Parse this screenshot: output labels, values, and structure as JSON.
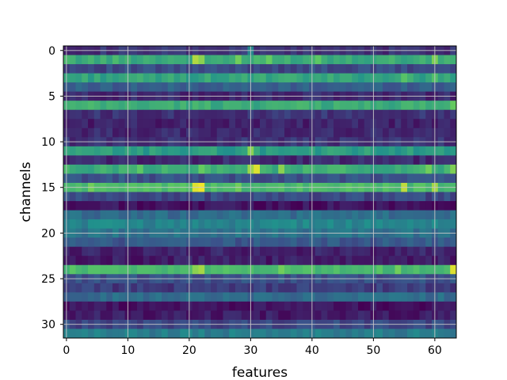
{
  "chart_data": {
    "type": "heatmap",
    "title": "",
    "xlabel": "features",
    "ylabel": "channels",
    "n_rows": 32,
    "n_cols": 64,
    "xlim": [
      -0.5,
      63.5
    ],
    "ylim": [
      31.5,
      -0.5
    ],
    "xticks": [
      0,
      10,
      20,
      30,
      40,
      50,
      60
    ],
    "xtick_labels": [
      "0",
      "10",
      "20",
      "30",
      "40",
      "50",
      "60"
    ],
    "yticks": [
      0,
      5,
      10,
      15,
      20,
      25,
      30
    ],
    "ytick_labels": [
      "0",
      "5",
      "10",
      "15",
      "20",
      "25",
      "30"
    ],
    "grid": true,
    "colormap": "viridis",
    "value_range": [
      0,
      1
    ],
    "row_base_values": [
      0.15,
      0.62,
      0.22,
      0.58,
      0.3,
      0.12,
      0.62,
      0.15,
      0.1,
      0.12,
      0.15,
      0.55,
      0.12,
      0.62,
      0.25,
      0.68,
      0.22,
      0.05,
      0.35,
      0.45,
      0.38,
      0.28,
      0.1,
      0.08,
      0.68,
      0.25,
      0.18,
      0.35,
      0.05,
      0.08,
      0.22,
      0.42
    ],
    "highlights": [
      {
        "row": 0,
        "col": 30,
        "value": 0.45
      },
      {
        "row": 1,
        "col": 21,
        "value": 0.88
      },
      {
        "row": 1,
        "col": 22,
        "value": 0.82
      },
      {
        "row": 1,
        "col": 28,
        "value": 0.78
      },
      {
        "row": 1,
        "col": 33,
        "value": 0.76
      },
      {
        "row": 1,
        "col": 41,
        "value": 0.74
      },
      {
        "row": 1,
        "col": 60,
        "value": 0.8
      },
      {
        "row": 3,
        "col": 55,
        "value": 0.72
      },
      {
        "row": 3,
        "col": 60,
        "value": 0.7
      },
      {
        "row": 6,
        "col": 63,
        "value": 0.76
      },
      {
        "row": 11,
        "col": 30,
        "value": 0.82
      },
      {
        "row": 13,
        "col": 12,
        "value": 0.74
      },
      {
        "row": 13,
        "col": 22,
        "value": 0.76
      },
      {
        "row": 13,
        "col": 30,
        "value": 0.85
      },
      {
        "row": 13,
        "col": 31,
        "value": 0.95
      },
      {
        "row": 13,
        "col": 35,
        "value": 0.82
      },
      {
        "row": 13,
        "col": 59,
        "value": 0.78
      },
      {
        "row": 13,
        "col": 63,
        "value": 0.8
      },
      {
        "row": 15,
        "col": 4,
        "value": 0.78
      },
      {
        "row": 15,
        "col": 21,
        "value": 0.95
      },
      {
        "row": 15,
        "col": 22,
        "value": 0.98
      },
      {
        "row": 15,
        "col": 28,
        "value": 0.78
      },
      {
        "row": 15,
        "col": 55,
        "value": 0.9
      },
      {
        "row": 15,
        "col": 60,
        "value": 0.86
      },
      {
        "row": 24,
        "col": 21,
        "value": 0.82
      },
      {
        "row": 24,
        "col": 22,
        "value": 0.86
      },
      {
        "row": 24,
        "col": 35,
        "value": 0.78
      },
      {
        "row": 24,
        "col": 54,
        "value": 0.78
      },
      {
        "row": 24,
        "col": 63,
        "value": 0.95
      }
    ]
  }
}
